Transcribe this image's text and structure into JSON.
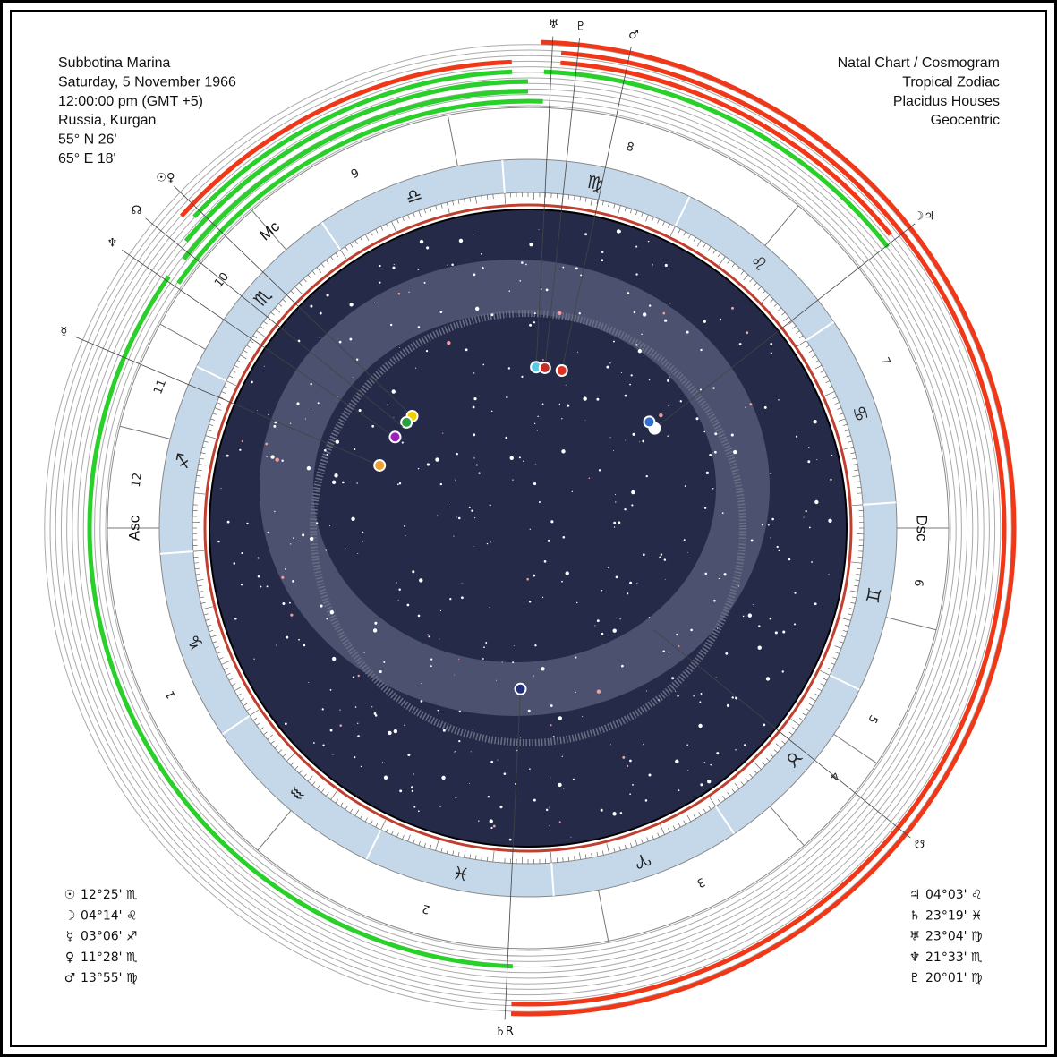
{
  "header_left": [
    "Subbotina Marina",
    "Saturday, 5 November 1966",
    "12:00:00 pm (GMT +5)",
    "Russia, Kurgan",
    "55° N 26'",
    "65° E 18'"
  ],
  "header_right": [
    "Natal Chart / Cosmogram",
    "Tropical Zodiac",
    "Placidus Houses",
    "Geocentric"
  ],
  "positions_left": [
    {
      "glyph": "☉",
      "position": "12°25' ♏"
    },
    {
      "glyph": "☽",
      "position": "04°14' ♌"
    },
    {
      "glyph": "☿",
      "position": "03°06' ♐"
    },
    {
      "glyph": "♀",
      "position": "11°28' ♏"
    },
    {
      "glyph": "♂",
      "position": "13°55' ♍"
    }
  ],
  "positions_right": [
    {
      "glyph": "♃",
      "position": "04°03' ♌"
    },
    {
      "glyph": "♄",
      "position": "23°19' ♓"
    },
    {
      "glyph": "♅",
      "position": "23°04' ♍"
    },
    {
      "glyph": "♆",
      "position": "21°33' ♏"
    },
    {
      "glyph": "♇",
      "position": "20°01' ♍"
    }
  ],
  "angles": [
    "Asc",
    "Mc",
    "Dsc"
  ],
  "houses": [
    "1",
    "2",
    "3",
    "4",
    "5",
    "6",
    "7",
    "8",
    "9",
    "10",
    "11",
    "12"
  ],
  "signs": [
    "♈",
    "♉",
    "♊",
    "♋",
    "♌",
    "♍",
    "♎",
    "♏",
    "♐",
    "♑",
    "♒",
    "♓"
  ],
  "outer_labels": [
    {
      "label": "♅",
      "longitude": 173.1,
      "colors": [
        "#58c8e8"
      ]
    },
    {
      "label": "♇",
      "longitude": 170.0,
      "colors": [
        "#c0302a"
      ]
    },
    {
      "label": "♂",
      "longitude": 163.9,
      "colors": [
        "#e03020"
      ]
    },
    {
      "label": "☉♀",
      "longitude": 222.0,
      "colors": [
        "#f0d000",
        "#2aa040"
      ]
    },
    {
      "label": "☊",
      "longitude": 227.0,
      "colors": []
    },
    {
      "label": "♆",
      "longitude": 231.6,
      "colors": [
        "#a020c0"
      ]
    },
    {
      "label": "☿",
      "longitude": 243.1,
      "colors": [
        "#f0a030"
      ]
    },
    {
      "label": "☽♃",
      "longitude": 124.2,
      "colors": [
        "#ffffff",
        "#3070d0"
      ]
    },
    {
      "label": "☋",
      "longitude": 47.0,
      "colors": []
    },
    {
      "label": "♄R",
      "longitude": 353.3,
      "colors": [
        "#203080"
      ]
    }
  ]
}
